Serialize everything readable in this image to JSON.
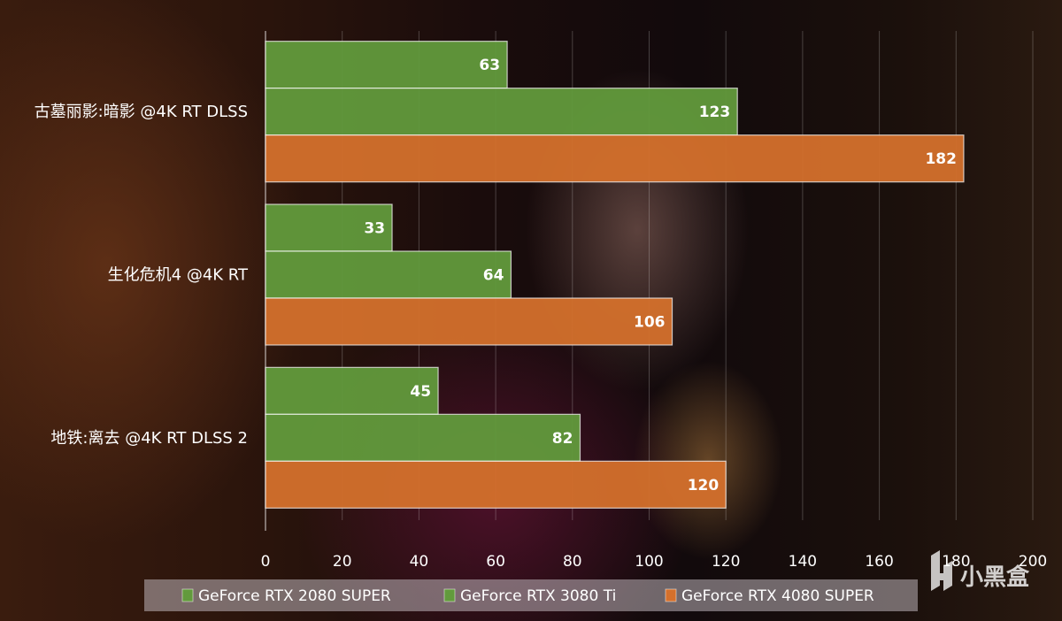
{
  "chart_data": {
    "type": "bar",
    "orientation": "horizontal",
    "categories": [
      "古墓丽影:暗影 @4K RT DLSS",
      "生化危机4 @4K RT",
      "地铁:离去 @4K RT DLSS 2"
    ],
    "series": [
      {
        "name": "GeForce RTX 2080 SUPER",
        "color": "#629a3c",
        "values": [
          63,
          33,
          45
        ]
      },
      {
        "name": "GeForce RTX 3080 Ti",
        "color": "#629a3c",
        "values": [
          123,
          64,
          82
        ]
      },
      {
        "name": "GeForce RTX 4080 SUPER",
        "color": "#d4702c",
        "values": [
          182,
          106,
          120
        ]
      }
    ],
    "xlim": [
      0,
      200
    ],
    "xticks": [
      "0",
      "20",
      "40",
      "60",
      "80",
      "100",
      "120",
      "140",
      "160",
      "180",
      "200"
    ],
    "grid": true,
    "data_labels": true,
    "legend_position": "bottom"
  },
  "watermark": {
    "text": "小黑盒"
  }
}
